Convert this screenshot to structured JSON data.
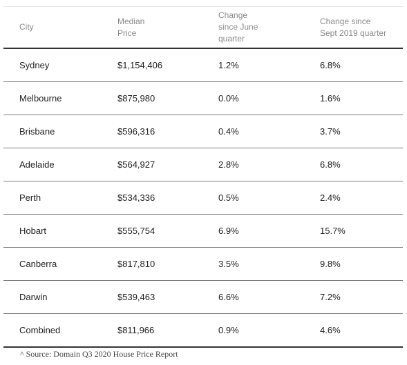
{
  "table": {
    "headers": {
      "city": [
        "City"
      ],
      "median_price": [
        "Median",
        "Price"
      ],
      "change_june": [
        "Change",
        "since June",
        "quarter"
      ],
      "change_sept": [
        "Change since",
        "Sept 2019 quarter"
      ]
    },
    "rows": [
      {
        "city": "Sydney",
        "median_price": "$1,154,406",
        "change_june": "1.2%",
        "change_sept": "6.8%"
      },
      {
        "city": "Melbourne",
        "median_price": "$875,980",
        "change_june": "0.0%",
        "change_sept": "1.6%"
      },
      {
        "city": "Brisbane",
        "median_price": "$596,316",
        "change_june": "0.4%",
        "change_sept": "3.7%"
      },
      {
        "city": "Adelaide",
        "median_price": "$564,927",
        "change_june": "2.8%",
        "change_sept": "6.8%"
      },
      {
        "city": "Perth",
        "median_price": "$534,336",
        "change_june": "0.5%",
        "change_sept": "2.4%"
      },
      {
        "city": "Hobart",
        "median_price": "$555,754",
        "change_june": "6.9%",
        "change_sept": "15.7%"
      },
      {
        "city": "Canberra",
        "median_price": "$817,810",
        "change_june": "3.5%",
        "change_sept": "9.8%"
      },
      {
        "city": "Darwin",
        "median_price": "$539,463",
        "change_june": "6.6%",
        "change_sept": "7.2%"
      },
      {
        "city": "Combined",
        "median_price": "$811,966",
        "change_june": "0.9%",
        "change_sept": "4.6%"
      }
    ]
  },
  "footnote": "^ Source: Domain Q3 2020 House Price Report"
}
